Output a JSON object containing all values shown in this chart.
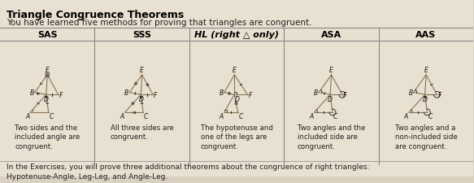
{
  "title": "Triangle Congruence Theorems",
  "subtitle": "You have learned five methods for proving that triangles are congruent.",
  "columns": [
    "SAS",
    "SSS",
    "HL (right △ only)",
    "ASA",
    "AAS"
  ],
  "descriptions": [
    "Two sides and the\nincluded angle are\ncongruent.",
    "All three sides are\ncongruent.",
    "The hypotenuse and\none of the legs are\ncongruent.",
    "Two angles and the\nincluded side are\ncongruent.",
    "Two angles and a\nnon-included side\nare congruent."
  ],
  "footer": "In the Exercises, you will prove three additional theorems about the congruence of right triangles:\nHypotenuse-Angle, Leg-Leg, and Angle-Leg.",
  "bg_color": "#d9d0c0",
  "content_bg": "#e8e0d0",
  "title_color": "#000000",
  "col_divider_color": "#888888",
  "header_divider_color": "#888888",
  "text_color": "#222222",
  "triangle_color": "#8B7355",
  "mark_color": "#333333"
}
